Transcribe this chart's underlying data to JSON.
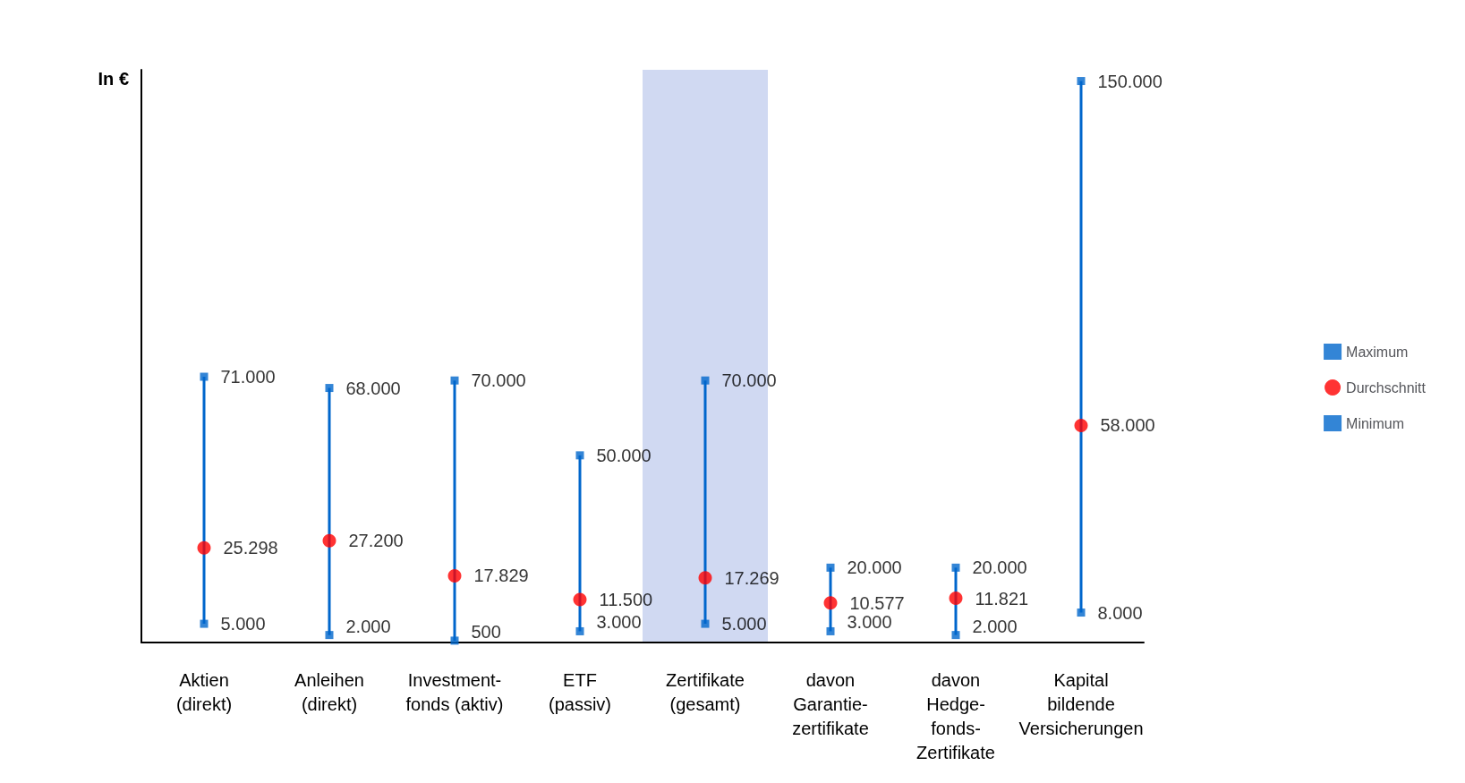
{
  "chart_data": {
    "type": "scatter",
    "ylabel": "In €",
    "tick_labels": "x",
    "legend": "right",
    "grid": false,
    "categories": [
      "Aktien\n(direkt)",
      "Anleihen\n(direkt)",
      "Investment-\nfonds (aktiv)",
      "ETF\n(passiv)",
      "Zertifikate\n(gesamt)",
      "davon\nGarantie-\nzertifikate",
      "davon\nHedge-\nfonds-\nZertifikate",
      "Kapital\nbildende\nVersicherungen"
    ],
    "bands": [
      {
        "axis": "x",
        "from": "Zertifikate\n(gesamt)",
        "to": "Zertifikate\n(gesamt)",
        "color": "#d0d9f2"
      }
    ],
    "series": [
      {
        "name": "Maximum",
        "marker": "square",
        "color": "#0066cc",
        "values": [
          71000,
          68000,
          70000,
          50000,
          70000,
          20000,
          20000,
          150000
        ],
        "value_labels": [
          "71.000",
          "68.000",
          "70.000",
          "50.000",
          "70.000",
          "20.000",
          "20.000",
          "150.000"
        ]
      },
      {
        "name": "Durchschnitt",
        "marker": "circle",
        "color": "#ff0000",
        "values": [
          25298,
          27200,
          17829,
          11500,
          17269,
          10577,
          11821,
          58000
        ],
        "value_labels": [
          "25.298",
          "27.200",
          "17.829",
          "11.500",
          "17.269",
          "10.577",
          "11.821",
          "58.000"
        ]
      },
      {
        "name": "Minimum",
        "marker": "square",
        "color": "#0066cc",
        "values": [
          5000,
          2000,
          500,
          3000,
          5000,
          3000,
          2000,
          8000
        ],
        "value_labels": [
          "5.000",
          "2.000",
          "500",
          "3.000",
          "5.000",
          "3.000",
          "2.000",
          "8.000"
        ]
      }
    ]
  }
}
